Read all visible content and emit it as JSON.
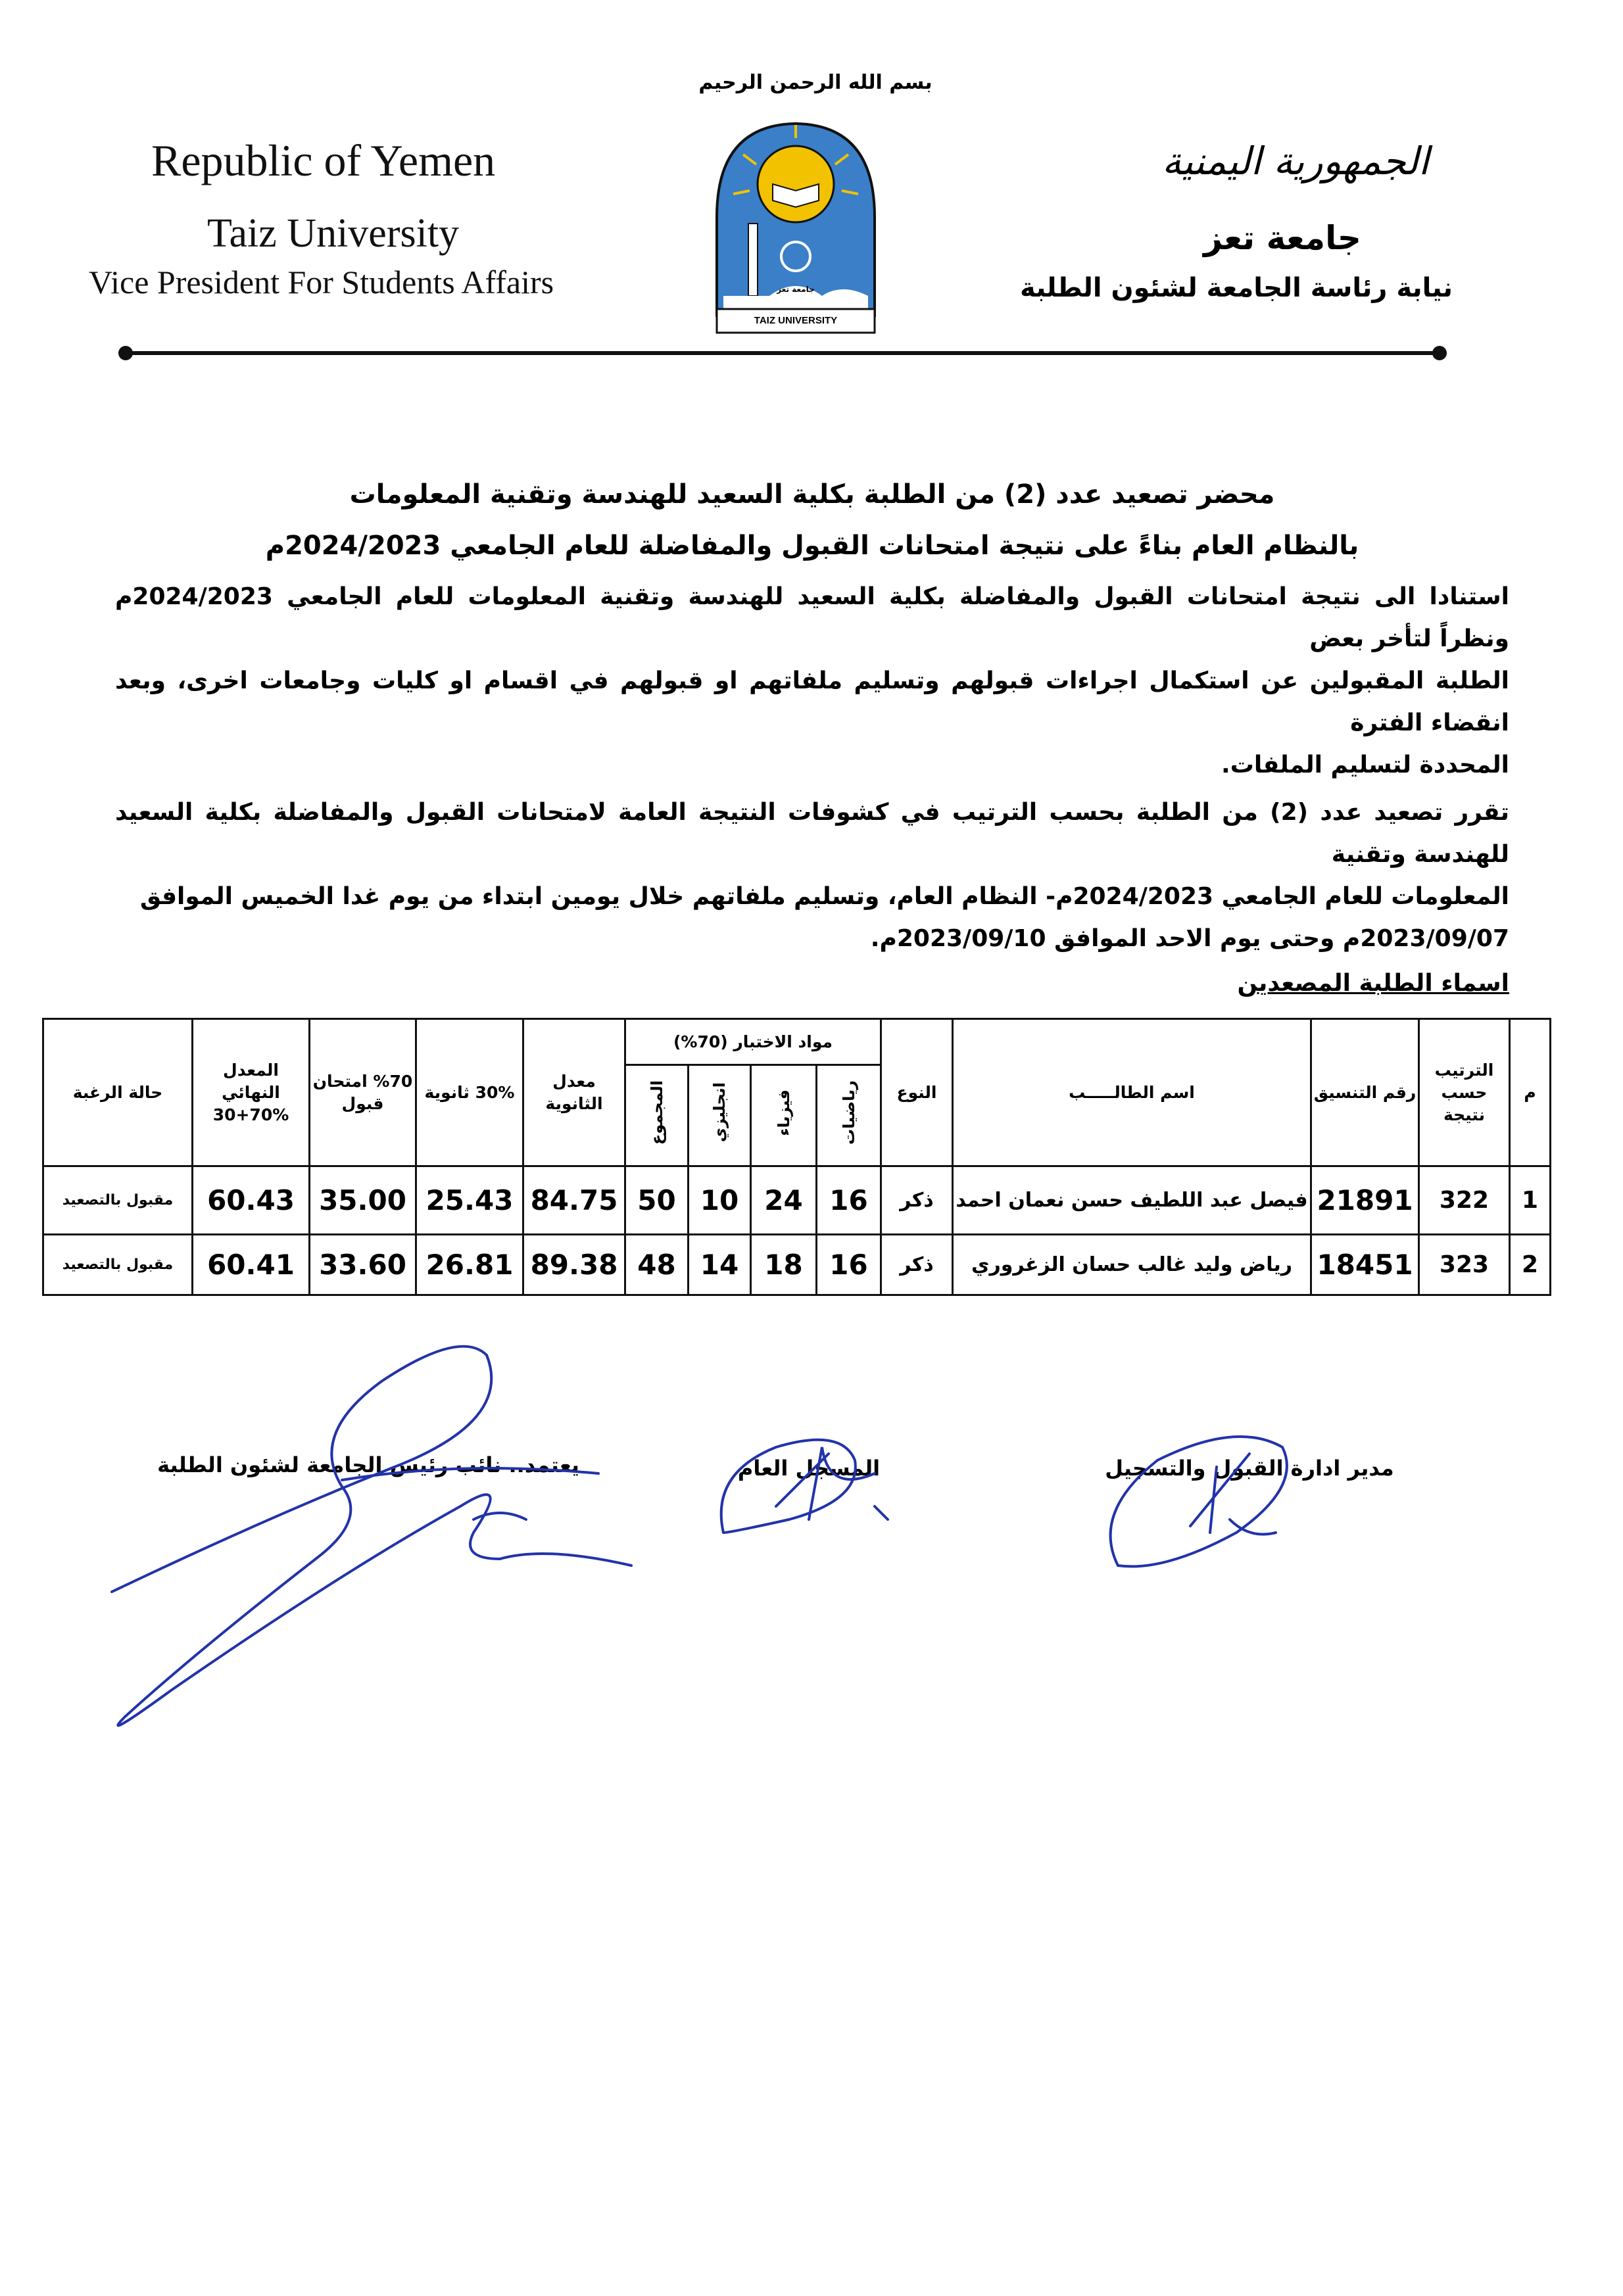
{
  "header": {
    "basmala": "بسم الله الرحمن الرحيم",
    "en_country": "Republic of Yemen",
    "en_university": "Taiz University",
    "en_office": "Vice President For Students Affairs",
    "ar_country": "الجمهورية اليمنية",
    "ar_university": "جامعة تعز",
    "ar_office": "نيابة رئاسة الجامعة لشئون الطلبة",
    "logo_text_ar": "جامعة تعز",
    "logo_text_en": "TAIZ UNIVERSITY"
  },
  "title": {
    "line1": "محضر تصعيد عدد (2) من الطلبة بكلية السعيد للهندسة وتقنية المعلومات",
    "line2": "بالنظام العام بناءً على نتيجة امتحانات القبول والمفاضلة للعام الجامعي 2024/2023م"
  },
  "body": {
    "p1": [
      "استنادا الى نتيجة امتحانات القبول والمفاضلة بكلية السعيد للهندسة وتقنية المعلومات للعام الجامعي 2024/2023م ونظراً لتأخر بعض",
      "الطلبة المقبولين عن استكمال اجراءات قبولهم وتسليم ملفاتهم او قبولهم في اقسام او كليات وجامعات اخرى، وبعد انقضاء الفترة",
      "المحددة لتسليم الملفات."
    ],
    "p2": [
      "تقرر تصعيد عدد (2) من الطلبة بحسب الترتيب في كشوفات النتيجة العامة لامتحانات القبول والمفاضلة بكلية السعيد للهندسة وتقنية",
      "المعلومات للعام الجامعي 2024/2023م- النظام العام، وتسليم ملفاتهم خلال يومين ابتداء من يوم غدا الخميس الموافق",
      "2023/09/07م وحتى يوم الاحد الموافق 2023/09/10م."
    ],
    "list_heading": "اسماء الطلبة المصعدين"
  },
  "table": {
    "headers": {
      "index": "م",
      "rank": "الترتيب حسب نتيجة",
      "coord_no": "رقم التنسيق",
      "name": "اسم الطالـــــب",
      "gender": "النوع",
      "exam_subjects": "مواد الاختبار (70%)",
      "math": "رياضيات",
      "physics": "فيزياء",
      "english": "انجليزي",
      "total": "المجموع",
      "hs_avg": "معدل الثانوية",
      "hs_30": "30% ثانوية",
      "exam_70": "%70 امتحان قبول",
      "final_avg": "المعدل النهائي %70+30",
      "status": "حالة الرغبة"
    },
    "rows": [
      {
        "index": "1",
        "rank": "322",
        "coord_no": "21891",
        "name": "فيصل عبد اللطيف حسن نعمان احمد",
        "gender": "ذكر",
        "math": "16",
        "physics": "24",
        "english": "10",
        "total": "50",
        "hs_avg": "84.75",
        "hs_30": "25.43",
        "exam_70": "35.00",
        "final_avg": "60.43",
        "status": "مقبول بالتصعيد"
      },
      {
        "index": "2",
        "rank": "323",
        "coord_no": "18451",
        "name": "رياض وليد غالب حسان الزغروري",
        "gender": "ذكر",
        "math": "16",
        "physics": "18",
        "english": "14",
        "total": "48",
        "hs_avg": "89.38",
        "hs_30": "26.81",
        "exam_70": "33.60",
        "final_avg": "60.41",
        "status": "مقبول بالتصعيد"
      }
    ]
  },
  "signatures": {
    "admissions": "مدير ادارة القبول والتسجيل",
    "registrar": "المسجل العام",
    "vp": "يعتمد.. نائب رئيس الجامعة لشئون الطلبة"
  },
  "colors": {
    "ink": "#111111",
    "signature": "#2233aa",
    "logo_blue": "#3a7fc8",
    "logo_yellow": "#f2c200"
  }
}
